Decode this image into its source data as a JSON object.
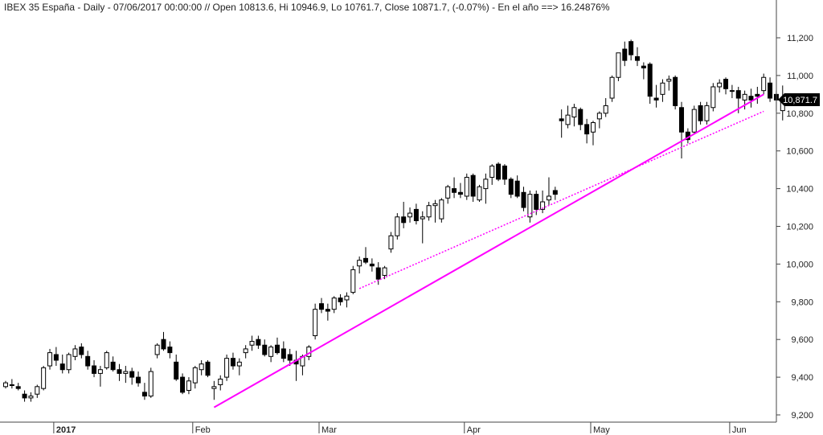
{
  "header": {
    "title": "IBEX 35 España - Daily - 07/06/2017 00:00:00 // Open 10813.6, Hi 10946.9, Lo 10761.7, Close 10871.7, (-0.07%) - En el año ==> 16.24876%"
  },
  "price_label": "10,871.7",
  "colors": {
    "up": "#ffffff",
    "down": "#000000",
    "trendline": "#ff00ff",
    "axis": "#444444",
    "price_tag": "#000000"
  },
  "chart_data": {
    "type": "candlestick",
    "title": "IBEX 35 España - Daily",
    "ylim": [
      9150,
      11400
    ],
    "y_ticks": [
      9200,
      9400,
      9600,
      9800,
      10000,
      10200,
      10400,
      10600,
      10800,
      11000,
      11200
    ],
    "y_tick_labels": [
      "9,200",
      "9,400",
      "9,600",
      "9,800",
      "10,000",
      "10,200",
      "10,400",
      "10,600",
      "10,800",
      "11,000",
      "11,200"
    ],
    "y_axis_side": "right",
    "grid": false,
    "x_month_labels": [
      {
        "label": "2017",
        "index": 8,
        "bold": true
      },
      {
        "label": "Feb",
        "index": 30
      },
      {
        "label": "Mar",
        "index": 50
      },
      {
        "label": "Apr",
        "index": 73
      },
      {
        "label": "May",
        "index": 93
      },
      {
        "label": "Jun",
        "index": 115
      }
    ],
    "candles": [
      [
        9350,
        9380,
        9340,
        9370
      ],
      [
        9360,
        9390,
        9340,
        9360
      ],
      [
        9350,
        9370,
        9330,
        9340
      ],
      [
        9310,
        9330,
        9270,
        9290
      ],
      [
        9290,
        9320,
        9270,
        9300
      ],
      [
        9310,
        9360,
        9290,
        9350
      ],
      [
        9340,
        9460,
        9330,
        9450
      ],
      [
        9460,
        9550,
        9440,
        9530
      ],
      [
        9520,
        9560,
        9460,
        9490
      ],
      [
        9470,
        9520,
        9420,
        9440
      ],
      [
        9440,
        9530,
        9420,
        9520
      ],
      [
        9510,
        9570,
        9490,
        9550
      ],
      [
        9560,
        9580,
        9500,
        9520
      ],
      [
        9510,
        9540,
        9440,
        9460
      ],
      [
        9460,
        9490,
        9400,
        9420
      ],
      [
        9420,
        9460,
        9350,
        9440
      ],
      [
        9450,
        9540,
        9440,
        9530
      ],
      [
        9480,
        9510,
        9430,
        9440
      ],
      [
        9440,
        9470,
        9380,
        9420
      ],
      [
        9420,
        9460,
        9370,
        9430
      ],
      [
        9430,
        9450,
        9360,
        9400
      ],
      [
        9400,
        9430,
        9350,
        9370
      ],
      [
        9320,
        9370,
        9280,
        9300
      ],
      [
        9300,
        9450,
        9290,
        9430
      ],
      [
        9520,
        9580,
        9500,
        9570
      ],
      [
        9600,
        9640,
        9540,
        9550
      ],
      [
        9560,
        9590,
        9500,
        9530
      ],
      [
        9480,
        9520,
        9380,
        9390
      ],
      [
        9400,
        9420,
        9310,
        9320
      ],
      [
        9330,
        9400,
        9310,
        9380
      ],
      [
        9370,
        9460,
        9340,
        9450
      ],
      [
        9440,
        9490,
        9410,
        9470
      ],
      [
        9480,
        9490,
        9400,
        9410
      ],
      [
        9340,
        9380,
        9280,
        9350
      ],
      [
        9360,
        9410,
        9330,
        9390
      ],
      [
        9400,
        9520,
        9380,
        9500
      ],
      [
        9500,
        9530,
        9440,
        9460
      ],
      [
        9460,
        9500,
        9410,
        9480
      ],
      [
        9530,
        9570,
        9500,
        9550
      ],
      [
        9570,
        9620,
        9540,
        9590
      ],
      [
        9600,
        9620,
        9550,
        9570
      ],
      [
        9570,
        9600,
        9510,
        9520
      ],
      [
        9510,
        9570,
        9480,
        9560
      ],
      [
        9570,
        9610,
        9520,
        9530
      ],
      [
        9550,
        9590,
        9480,
        9500
      ],
      [
        9520,
        9550,
        9460,
        9490
      ],
      [
        9490,
        9540,
        9380,
        9470
      ],
      [
        9460,
        9520,
        9410,
        9510
      ],
      [
        9510,
        9570,
        9490,
        9560
      ],
      [
        9620,
        9790,
        9600,
        9760
      ],
      [
        9790,
        9820,
        9740,
        9760
      ],
      [
        9760,
        9790,
        9700,
        9750
      ],
      [
        9760,
        9830,
        9740,
        9820
      ],
      [
        9820,
        9840,
        9780,
        9800
      ],
      [
        9810,
        9850,
        9770,
        9830
      ],
      [
        9850,
        9990,
        9840,
        9970
      ],
      [
        9990,
        10040,
        9950,
        10020
      ],
      [
        10030,
        10090,
        10000,
        10010
      ],
      [
        10000,
        10030,
        9960,
        9990
      ],
      [
        9980,
        10010,
        9890,
        9920
      ],
      [
        9940,
        9990,
        9920,
        9980
      ],
      [
        10080,
        10170,
        10060,
        10150
      ],
      [
        10150,
        10270,
        10130,
        10250
      ],
      [
        10250,
        10330,
        10190,
        10220
      ],
      [
        10250,
        10300,
        10220,
        10270
      ],
      [
        10290,
        10320,
        10210,
        10230
      ],
      [
        10240,
        10280,
        10110,
        10250
      ],
      [
        10250,
        10330,
        10230,
        10310
      ],
      [
        10310,
        10340,
        10220,
        10320
      ],
      [
        10240,
        10350,
        10220,
        10340
      ],
      [
        10350,
        10420,
        10320,
        10410
      ],
      [
        10400,
        10460,
        10350,
        10380
      ],
      [
        10380,
        10430,
        10350,
        10370
      ],
      [
        10360,
        10480,
        10340,
        10460
      ],
      [
        10470,
        10480,
        10330,
        10360
      ],
      [
        10340,
        10420,
        10330,
        10410
      ],
      [
        10400,
        10480,
        10320,
        10450
      ],
      [
        10460,
        10530,
        10420,
        10520
      ],
      [
        10530,
        10540,
        10440,
        10450
      ],
      [
        10520,
        10530,
        10420,
        10450
      ],
      [
        10450,
        10460,
        10350,
        10370
      ],
      [
        10440,
        10470,
        10350,
        10360
      ],
      [
        10380,
        10410,
        10280,
        10300
      ],
      [
        10250,
        10390,
        10220,
        10370
      ],
      [
        10370,
        10390,
        10260,
        10290
      ],
      [
        10290,
        10390,
        10270,
        10330
      ],
      [
        10340,
        10460,
        10310,
        10360
      ],
      [
        10390,
        10410,
        10340,
        10370
      ],
      [
        10770,
        10820,
        10670,
        10760
      ],
      [
        10740,
        10840,
        10720,
        10790
      ],
      [
        10780,
        10850,
        10730,
        10830
      ],
      [
        10820,
        10830,
        10710,
        10740
      ],
      [
        10740,
        10770,
        10640,
        10690
      ],
      [
        10700,
        10760,
        10630,
        10750
      ],
      [
        10770,
        10810,
        10720,
        10800
      ],
      [
        10800,
        10880,
        10780,
        10840
      ],
      [
        10880,
        11000,
        10860,
        10990
      ],
      [
        10990,
        11120,
        10970,
        11120
      ],
      [
        11140,
        11180,
        11050,
        11080
      ],
      [
        11180,
        11190,
        11080,
        11110
      ],
      [
        11100,
        11150,
        11050,
        11080
      ],
      [
        11050,
        11070,
        10980,
        11040
      ],
      [
        11060,
        11070,
        10850,
        10890
      ],
      [
        10880,
        10950,
        10830,
        10870
      ],
      [
        10900,
        10980,
        10860,
        10960
      ],
      [
        10970,
        11000,
        10920,
        10980
      ],
      [
        10990,
        11000,
        10820,
        10840
      ],
      [
        10830,
        10860,
        10560,
        10700
      ],
      [
        10700,
        10720,
        10640,
        10660
      ],
      [
        10700,
        10840,
        10690,
        10820
      ],
      [
        10840,
        10860,
        10740,
        10760
      ],
      [
        10760,
        10860,
        10740,
        10840
      ],
      [
        10830,
        10960,
        10810,
        10940
      ],
      [
        10940,
        10980,
        10910,
        10960
      ],
      [
        10980,
        10990,
        10900,
        10930
      ],
      [
        10920,
        10950,
        10880,
        10920
      ],
      [
        10920,
        10940,
        10800,
        10880
      ],
      [
        10870,
        10920,
        10820,
        10900
      ],
      [
        10890,
        10930,
        10830,
        10870
      ],
      [
        10900,
        10940,
        10850,
        10890
      ],
      [
        10920,
        11010,
        10900,
        10990
      ],
      [
        10960,
        10990,
        10860,
        10880
      ],
      [
        10900,
        10920,
        10810,
        10870
      ],
      [
        10813.6,
        10946.9,
        10761.7,
        10871.7
      ]
    ],
    "trendlines": [
      {
        "style": "solid",
        "from": {
          "index": 33,
          "value": 9240
        },
        "to": {
          "index": 120,
          "value": 10900
        }
      },
      {
        "style": "dotted",
        "from": {
          "index": 56,
          "value": 9870
        },
        "to": {
          "index": 120,
          "value": 10810
        }
      }
    ]
  }
}
